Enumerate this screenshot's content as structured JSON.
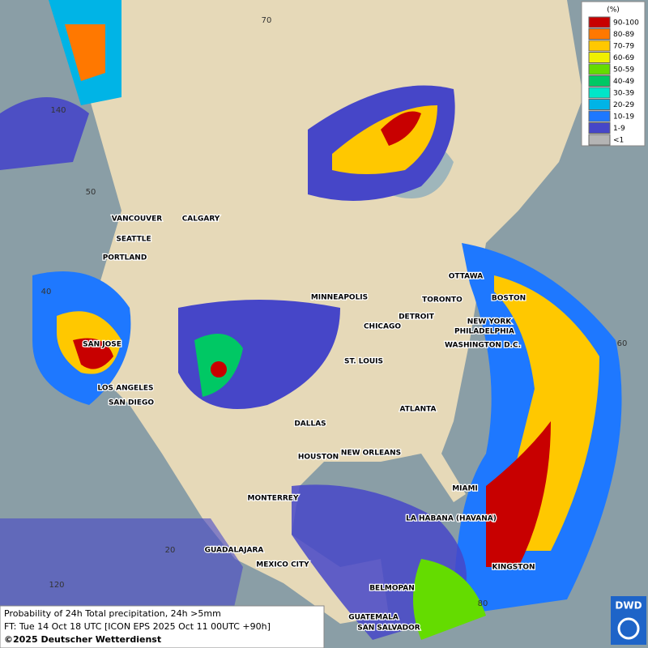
{
  "legend": {
    "title": "(%)",
    "entries": [
      {
        "label": "90-100",
        "color": "#c80000"
      },
      {
        "label": "80-89",
        "color": "#ff7800"
      },
      {
        "label": "70-79",
        "color": "#ffc800"
      },
      {
        "label": "60-69",
        "color": "#f0f000"
      },
      {
        "label": "50-59",
        "color": "#64dc00"
      },
      {
        "label": "40-49",
        "color": "#00c864"
      },
      {
        "label": "30-39",
        "color": "#00e6c8"
      },
      {
        "label": "20-29",
        "color": "#00b4e6"
      },
      {
        "label": "10-19",
        "color": "#1e78ff"
      },
      {
        "label": "1-9",
        "color": "#4646c8"
      },
      {
        "label": "<1",
        "color": "#b4b4b4"
      }
    ]
  },
  "cities": [
    "VANCOUVER",
    "CALGARY",
    "SEATTLE",
    "PORTLAND",
    "MINNEAPOLIS",
    "OTTAWA",
    "TORONTO",
    "BOSTON",
    "DETROIT",
    "NEW YORK",
    "CHICAGO",
    "PHILADELPHIA",
    "SAN JOSE",
    "WASHINGTON D.C.",
    "ST. LOUIS",
    "LOS ANGELES",
    "SAN DIEGO",
    "ATLANTA",
    "DALLAS",
    "HOUSTON",
    "NEW ORLEANS",
    "MIAMI",
    "MONTERREY",
    "LA HABANA (HAVANA)",
    "GUADALAJARA",
    "MEXICO CITY",
    "KINGSTON",
    "BELMOPAN",
    "GUATEMALA",
    "SAN SALVADOR"
  ],
  "grid_labels": [
    "70",
    "140",
    "50",
    "40",
    "60",
    "20",
    "120",
    "80"
  ],
  "footer": {
    "line1": "Probability of 24h Total precipitation, 24h >5mm",
    "line2": "FT: Tue 14 Oct 18 UTC [ICON EPS 2025 Oct 11 00UTC +90h]",
    "copyright": "©2025 Deutscher Wetterdienst"
  },
  "logo": "DWD"
}
